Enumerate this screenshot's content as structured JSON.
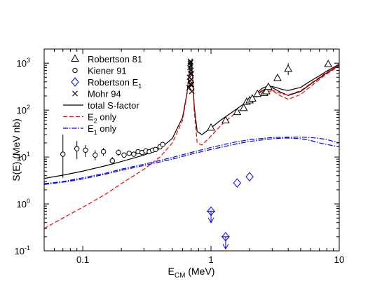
{
  "chart_data": {
    "type": "scatter",
    "title": "",
    "xlabel": "E",
    "xlabel_sub": "CM",
    "xlabel_unit": " (MeV)",
    "ylabel": "S(E) (MeV nb)",
    "xscale": "log",
    "yscale": "log",
    "xlim": [
      0.05,
      10
    ],
    "ylim": [
      0.1,
      2000
    ],
    "grid": false,
    "legend_placement": "top-left",
    "x_ticks": [
      {
        "value": 0.1,
        "label": "0.1"
      },
      {
        "value": 1,
        "label": "1"
      },
      {
        "value": 10,
        "label": "10"
      }
    ],
    "y_ticks": [
      {
        "value": 0.1,
        "base": "10",
        "exp": "-1"
      },
      {
        "value": 1,
        "base": "10",
        "exp": "0"
      },
      {
        "value": 10,
        "base": "10",
        "exp": "1"
      },
      {
        "value": 100,
        "base": "10",
        "exp": "2"
      },
      {
        "value": 1000,
        "base": "10",
        "exp": "3"
      }
    ],
    "legend": [
      {
        "key": "robertson81",
        "text": "Robertson 81",
        "marker": "triangle",
        "color": "#000000"
      },
      {
        "key": "kiener91",
        "text": "Kiener 91",
        "marker": "circle",
        "color": "#000000"
      },
      {
        "key": "robertsonE1",
        "text": "Robertson E",
        "sub": "1",
        "marker": "diamond",
        "color": "#0000ff"
      },
      {
        "key": "mohr94",
        "text": "Mohr 94",
        "marker": "cross",
        "color": "#000000"
      },
      {
        "key": "total",
        "text": "total S-factor",
        "line": "solid",
        "color": "#000000"
      },
      {
        "key": "e2only",
        "text": "E",
        "sub": "2",
        "text2": " only",
        "line": "dashed",
        "color": "#ff0000"
      },
      {
        "key": "e1only",
        "text": "E",
        "sub": "1",
        "text2": " only",
        "line": "dashdot",
        "color": "#0000ff"
      }
    ],
    "series": [
      {
        "name": "total S-factor",
        "kind": "line",
        "style": "solid",
        "color": "#000000",
        "points": [
          [
            0.05,
            3.5
          ],
          [
            0.07,
            4.1
          ],
          [
            0.1,
            5.0
          ],
          [
            0.15,
            6.5
          ],
          [
            0.2,
            8.0
          ],
          [
            0.3,
            11
          ],
          [
            0.4,
            15
          ],
          [
            0.5,
            25
          ],
          [
            0.6,
            70
          ],
          [
            0.65,
            230
          ],
          [
            0.68,
            700
          ],
          [
            0.7,
            1100
          ],
          [
            0.72,
            500
          ],
          [
            0.74,
            120
          ],
          [
            0.78,
            35
          ],
          [
            0.85,
            30
          ],
          [
            1.0,
            42
          ],
          [
            1.2,
            62
          ],
          [
            1.5,
            95
          ],
          [
            2.0,
            165
          ],
          [
            2.5,
            260
          ],
          [
            3.0,
            300
          ],
          [
            3.5,
            240
          ],
          [
            4.0,
            205
          ],
          [
            5.0,
            250
          ],
          [
            6.0,
            360
          ],
          [
            7.0,
            480
          ],
          [
            8.0,
            620
          ],
          [
            10.0,
            900
          ]
        ]
      },
      {
        "name": "total S-factor (upper)",
        "kind": "line",
        "style": "solid",
        "color": "#000000",
        "points": [
          [
            2.2,
            210
          ],
          [
            2.5,
            290
          ],
          [
            2.8,
            330
          ],
          [
            3.2,
            305
          ],
          [
            3.6,
            275
          ],
          [
            4.0,
            262
          ],
          [
            5.0,
            305
          ],
          [
            6.0,
            420
          ],
          [
            7.0,
            540
          ],
          [
            8.0,
            680
          ],
          [
            10.0,
            950
          ]
        ]
      },
      {
        "name": "E2 only",
        "kind": "line",
        "style": "dashed",
        "color": "#ff0000",
        "points": [
          [
            0.05,
            0.3
          ],
          [
            0.07,
            0.5
          ],
          [
            0.1,
            0.85
          ],
          [
            0.15,
            1.6
          ],
          [
            0.2,
            2.7
          ],
          [
            0.3,
            5.5
          ],
          [
            0.4,
            10
          ],
          [
            0.5,
            20
          ],
          [
            0.6,
            60
          ],
          [
            0.65,
            220
          ],
          [
            0.68,
            680
          ],
          [
            0.7,
            1050
          ],
          [
            0.72,
            450
          ],
          [
            0.74,
            95
          ],
          [
            0.78,
            20
          ],
          [
            0.85,
            18
          ],
          [
            1.0,
            28
          ],
          [
            1.2,
            48
          ],
          [
            1.5,
            80
          ],
          [
            2.0,
            145
          ],
          [
            2.5,
            230
          ],
          [
            3.0,
            260
          ],
          [
            3.5,
            200
          ],
          [
            4.0,
            170
          ],
          [
            5.0,
            215
          ],
          [
            6.0,
            320
          ],
          [
            7.0,
            450
          ],
          [
            8.0,
            590
          ],
          [
            10.0,
            880
          ]
        ]
      },
      {
        "name": "E2 only (upper)",
        "kind": "line",
        "style": "dashed",
        "color": "#ff0000",
        "points": [
          [
            2.2,
            190
          ],
          [
            2.5,
            255
          ],
          [
            2.8,
            280
          ],
          [
            3.2,
            250
          ],
          [
            3.6,
            220
          ],
          [
            4.0,
            210
          ],
          [
            5.0,
            260
          ],
          [
            6.0,
            370
          ],
          [
            7.0,
            500
          ],
          [
            8.0,
            640
          ],
          [
            10.0,
            920
          ]
        ]
      },
      {
        "name": "E1 only",
        "kind": "line",
        "style": "dashdot",
        "color": "#0000ff",
        "points": [
          [
            0.05,
            2.6
          ],
          [
            0.07,
            2.9
          ],
          [
            0.1,
            3.4
          ],
          [
            0.15,
            4.3
          ],
          [
            0.2,
            5.2
          ],
          [
            0.3,
            6.6
          ],
          [
            0.5,
            9.0
          ],
          [
            0.7,
            11.5
          ],
          [
            1.0,
            14.5
          ],
          [
            1.5,
            18.5
          ],
          [
            2.0,
            21.5
          ],
          [
            3.0,
            24.5
          ],
          [
            4.0,
            25.5
          ],
          [
            5.0,
            24.5
          ],
          [
            6.0,
            22.5
          ],
          [
            7.0,
            20
          ],
          [
            8.0,
            18.5
          ],
          [
            10.0,
            16.5
          ]
        ]
      },
      {
        "name": "E1 only (upper)",
        "kind": "line",
        "style": "dashdot",
        "color": "#0000ff",
        "points": [
          [
            0.05,
            2.7
          ],
          [
            0.07,
            3.0
          ],
          [
            0.1,
            3.6
          ],
          [
            0.15,
            4.5
          ],
          [
            0.2,
            5.5
          ],
          [
            0.3,
            7.0
          ],
          [
            0.5,
            9.8
          ],
          [
            0.7,
            12.5
          ],
          [
            1.0,
            16
          ],
          [
            1.5,
            20.5
          ],
          [
            2.0,
            23.5
          ],
          [
            3.0,
            26
          ],
          [
            4.0,
            26.5
          ],
          [
            5.0,
            26.5
          ],
          [
            6.0,
            26
          ],
          [
            7.0,
            25
          ],
          [
            8.0,
            23.5
          ],
          [
            10.0,
            20
          ]
        ]
      },
      {
        "name": "Robertson 81",
        "kind": "points",
        "marker": "triangle",
        "color": "#000000",
        "points": [
          [
            1.0,
            42,
            38,
            47
          ],
          [
            1.3,
            60,
            55,
            66
          ],
          [
            1.6,
            90,
            80,
            100
          ],
          [
            1.8,
            110,
            100,
            120
          ],
          [
            1.9,
            150,
            140,
            160
          ],
          [
            2.0,
            160,
            145,
            175
          ],
          [
            2.1,
            175,
            155,
            195
          ],
          [
            2.3,
            220,
            200,
            240
          ],
          [
            2.6,
            230,
            210,
            250
          ],
          [
            2.7,
            250,
            225,
            275
          ],
          [
            2.8,
            310,
            280,
            340
          ],
          [
            3.3,
            480,
            440,
            520
          ],
          [
            4.0,
            750,
            560,
            1000
          ],
          [
            8.2,
            950,
            900,
            1000
          ]
        ]
      },
      {
        "name": "Kiener 91",
        "kind": "points",
        "marker": "circle",
        "color": "#000000",
        "points": [
          [
            0.07,
            11.5,
            3.6,
            30
          ],
          [
            0.09,
            15,
            9.0,
            22
          ],
          [
            0.105,
            14,
            10,
            18
          ],
          [
            0.125,
            11,
            8.5,
            14
          ],
          [
            0.145,
            13,
            10.5,
            15.5
          ],
          [
            0.17,
            8.3,
            7.0,
            10
          ],
          [
            0.19,
            12.5,
            10.5,
            14.5
          ],
          [
            0.21,
            11.0,
            9.5,
            12.5
          ],
          [
            0.23,
            12.0,
            10.5,
            13.5
          ],
          [
            0.25,
            11.5,
            10.5,
            12.5
          ],
          [
            0.27,
            13,
            12,
            14
          ],
          [
            0.29,
            12.5,
            11.5,
            13.5
          ],
          [
            0.31,
            13.5,
            12.5,
            14.5
          ],
          [
            0.33,
            13.0,
            12,
            14
          ],
          [
            0.35,
            14,
            13,
            15
          ],
          [
            0.37,
            14.5,
            13.5,
            15.5
          ],
          [
            0.4,
            16.5,
            15.5,
            17.5
          ],
          [
            0.42,
            18.5,
            17,
            20
          ]
        ]
      },
      {
        "name": "Mohr 94",
        "kind": "points",
        "marker": "cross",
        "color": "#000000",
        "points": [
          [
            0.675,
            300
          ],
          [
            0.68,
            500
          ],
          [
            0.685,
            800
          ],
          [
            0.688,
            1000
          ],
          [
            0.69,
            1100
          ],
          [
            0.692,
            900
          ],
          [
            0.695,
            1050
          ],
          [
            0.698,
            700
          ],
          [
            0.7,
            450
          ],
          [
            0.703,
            600
          ],
          [
            0.705,
            350
          ],
          [
            0.708,
            250
          ],
          [
            0.69,
            350
          ],
          [
            0.686,
            420
          ],
          [
            0.694,
            600
          ]
        ]
      },
      {
        "name": "Robertson E1",
        "kind": "points",
        "marker": "diamond",
        "color": "#0000ff",
        "points": [
          [
            1.0,
            0.7
          ],
          [
            1.3,
            0.2
          ],
          [
            1.6,
            2.8
          ],
          [
            2.0,
            3.8
          ]
        ]
      }
    ],
    "upper_limits": [
      {
        "x": 1.0,
        "from": 0.7,
        "to": 0.4
      },
      {
        "x": 1.3,
        "from": 0.2,
        "to": 0.11
      }
    ]
  }
}
